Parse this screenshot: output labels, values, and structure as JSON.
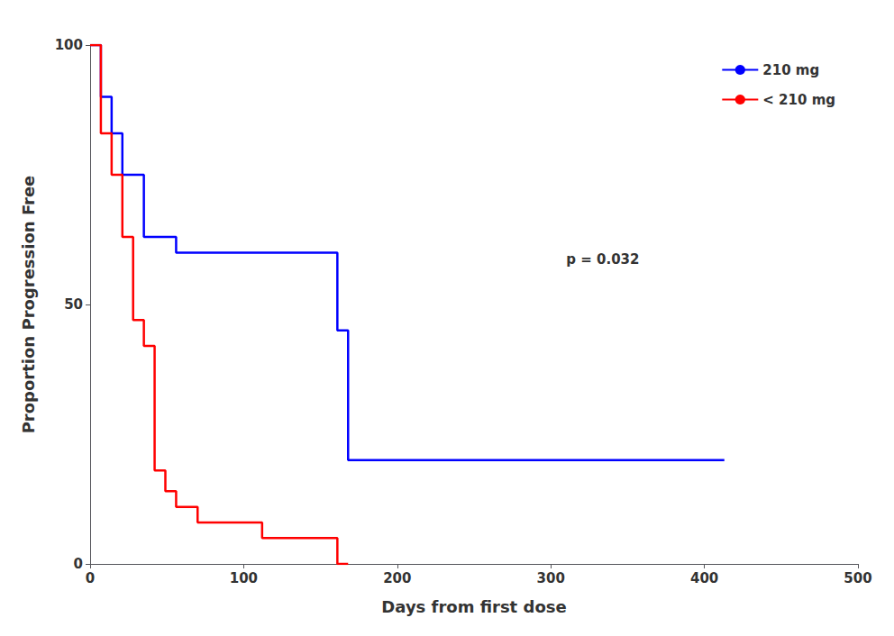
{
  "chart_data": {
    "type": "line",
    "xlabel": "Days from first dose",
    "ylabel": "Proportion Progression Free",
    "series": [
      {
        "name": "210 mg",
        "color": "#0000FF",
        "x": [
          0,
          7,
          7,
          14,
          14,
          21,
          21,
          35,
          35,
          56,
          56,
          161,
          161,
          168,
          168,
          196,
          196,
          413,
          413
        ],
        "values": [
          100,
          100,
          90,
          90,
          83,
          83,
          75,
          75,
          63,
          63,
          60,
          60,
          45,
          45,
          20,
          20,
          20,
          20,
          20
        ]
      },
      {
        "name": "< 210 mg",
        "color": "#FF0000",
        "x": [
          0,
          7,
          7,
          14,
          14,
          21,
          21,
          28,
          28,
          35,
          35,
          42,
          42,
          49,
          49,
          56,
          56,
          70,
          70,
          84,
          84,
          112,
          112,
          140,
          140,
          161,
          161,
          168,
          168
        ],
        "values": [
          100,
          100,
          83,
          83,
          75,
          75,
          63,
          63,
          47,
          47,
          42,
          42,
          18,
          18,
          14,
          14,
          11,
          11,
          8,
          8,
          8,
          8,
          5,
          5,
          5,
          5,
          0,
          0,
          0
        ]
      }
    ],
    "annotation": "p = 0.032",
    "xlim": [
      0,
      500
    ],
    "ylim": [
      0,
      100
    ],
    "xticks": [
      0,
      100,
      200,
      300,
      400,
      500
    ],
    "yticks": [
      0,
      50,
      100
    ],
    "grid": false,
    "legend": "upper right"
  }
}
